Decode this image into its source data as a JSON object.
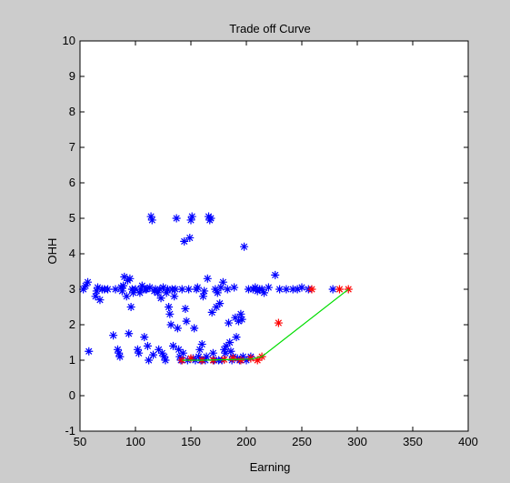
{
  "chart_data": {
    "type": "scatter",
    "title": "Trade off Curve",
    "xlabel": "Earning",
    "ylabel": "OHH",
    "xlim": [
      50,
      400
    ],
    "ylim": [
      -1,
      10
    ],
    "xticks": [
      50,
      100,
      150,
      200,
      250,
      300,
      350,
      400
    ],
    "yticks": [
      -1,
      0,
      1,
      2,
      3,
      4,
      5,
      6,
      7,
      8,
      9,
      10
    ],
    "grid": false,
    "legend": "none",
    "colors": {
      "background": "#cccccc",
      "axes_bg": "#ffffff",
      "blue": "#0000ff",
      "red": "#ff0000",
      "green": "#00dd00"
    },
    "series": [
      {
        "marker": "*",
        "color": "#0000ff",
        "points": [
          [
            53,
            3.0
          ],
          [
            55,
            3.1
          ],
          [
            57,
            3.2
          ],
          [
            58,
            1.25
          ],
          [
            64,
            2.8
          ],
          [
            65,
            2.95
          ],
          [
            66,
            3.05
          ],
          [
            68,
            2.7
          ],
          [
            70,
            3.0
          ],
          [
            72,
            3.0
          ],
          [
            75,
            3.0
          ],
          [
            80,
            1.7
          ],
          [
            82,
            3.0
          ],
          [
            84,
            1.3
          ],
          [
            85,
            1.2
          ],
          [
            86,
            1.1
          ],
          [
            87,
            3.05
          ],
          [
            88,
            2.95
          ],
          [
            89,
            3.1
          ],
          [
            90,
            3.35
          ],
          [
            92,
            2.8
          ],
          [
            93,
            3.25
          ],
          [
            94,
            1.75
          ],
          [
            95,
            3.3
          ],
          [
            96,
            2.5
          ],
          [
            97,
            3.0
          ],
          [
            98,
            2.9
          ],
          [
            100,
            3.0
          ],
          [
            102,
            1.3
          ],
          [
            103,
            1.2
          ],
          [
            104,
            2.9
          ],
          [
            105,
            3.0
          ],
          [
            106,
            3.1
          ],
          [
            108,
            1.65
          ],
          [
            109,
            3.0
          ],
          [
            110,
            3.0
          ],
          [
            111,
            1.4
          ],
          [
            112,
            1.0
          ],
          [
            113,
            3.05
          ],
          [
            114,
            5.05
          ],
          [
            115,
            4.95
          ],
          [
            116,
            1.15
          ],
          [
            117,
            2.95
          ],
          [
            118,
            3.0
          ],
          [
            120,
            2.9
          ],
          [
            121,
            1.3
          ],
          [
            122,
            3.0
          ],
          [
            123,
            2.75
          ],
          [
            124,
            1.2
          ],
          [
            125,
            3.05
          ],
          [
            126,
            1.1
          ],
          [
            127,
            1.0
          ],
          [
            128,
            2.9
          ],
          [
            129,
            3.0
          ],
          [
            130,
            2.5
          ],
          [
            131,
            2.3
          ],
          [
            132,
            2.0
          ],
          [
            133,
            3.0
          ],
          [
            134,
            1.4
          ],
          [
            135,
            2.8
          ],
          [
            136,
            3.0
          ],
          [
            137,
            5.0
          ],
          [
            138,
            1.9
          ],
          [
            139,
            1.3
          ],
          [
            140,
            1.1
          ],
          [
            141,
            1.0
          ],
          [
            142,
            3.0
          ],
          [
            143,
            1.2
          ],
          [
            144,
            4.35
          ],
          [
            145,
            2.45
          ],
          [
            146,
            2.1
          ],
          [
            147,
            1.0
          ],
          [
            148,
            3.0
          ],
          [
            149,
            4.45
          ],
          [
            150,
            4.95
          ],
          [
            151,
            5.05
          ],
          [
            152,
            1.05
          ],
          [
            153,
            1.9
          ],
          [
            154,
            1.0
          ],
          [
            155,
            3.0
          ],
          [
            156,
            3.05
          ],
          [
            157,
            1.1
          ],
          [
            158,
            1.3
          ],
          [
            159,
            1.0
          ],
          [
            160,
            1.45
          ],
          [
            161,
            2.8
          ],
          [
            162,
            2.95
          ],
          [
            163,
            1.0
          ],
          [
            164,
            1.1
          ],
          [
            165,
            3.3
          ],
          [
            166,
            5.05
          ],
          [
            167,
            4.95
          ],
          [
            168,
            5.0
          ],
          [
            169,
            2.35
          ],
          [
            170,
            1.2
          ],
          [
            171,
            1.0
          ],
          [
            172,
            3.0
          ],
          [
            173,
            2.5
          ],
          [
            174,
            2.9
          ],
          [
            175,
            1.0
          ],
          [
            176,
            2.6
          ],
          [
            177,
            3.05
          ],
          [
            178,
            1.0
          ],
          [
            179,
            3.2
          ],
          [
            180,
            1.3
          ],
          [
            181,
            1.2
          ],
          [
            182,
            1.4
          ],
          [
            183,
            3.0
          ],
          [
            184,
            2.05
          ],
          [
            185,
            1.5
          ],
          [
            186,
            1.25
          ],
          [
            187,
            1.0
          ],
          [
            188,
            1.1
          ],
          [
            189,
            3.05
          ],
          [
            190,
            2.2
          ],
          [
            191,
            1.65
          ],
          [
            192,
            1.05
          ],
          [
            193,
            2.1
          ],
          [
            194,
            1.0
          ],
          [
            195,
            2.3
          ],
          [
            196,
            2.15
          ],
          [
            197,
            1.1
          ],
          [
            198,
            4.2
          ],
          [
            200,
            1.0
          ],
          [
            202,
            3.0
          ],
          [
            204,
            1.1
          ],
          [
            206,
            3.0
          ],
          [
            208,
            3.05
          ],
          [
            210,
            2.95
          ],
          [
            212,
            3.0
          ],
          [
            214,
            3.0
          ],
          [
            216,
            2.9
          ],
          [
            220,
            3.05
          ],
          [
            226,
            3.4
          ],
          [
            230,
            3.0
          ],
          [
            236,
            3.0
          ],
          [
            242,
            3.0
          ],
          [
            246,
            3.0
          ],
          [
            250,
            3.05
          ],
          [
            256,
            3.0
          ],
          [
            278,
            3.0
          ]
        ]
      },
      {
        "marker": "*",
        "color": "#ff0000",
        "points": [
          [
            142,
            1.0
          ],
          [
            150,
            1.05
          ],
          [
            160,
            1.0
          ],
          [
            170,
            1.0
          ],
          [
            180,
            1.02
          ],
          [
            188,
            1.05
          ],
          [
            195,
            1.0
          ],
          [
            204,
            1.05
          ],
          [
            210,
            1.0
          ],
          [
            214,
            1.1
          ],
          [
            229,
            2.05
          ],
          [
            259,
            3.0
          ],
          [
            284,
            3.0
          ],
          [
            292,
            3.0
          ]
        ]
      },
      {
        "type": "line",
        "color": "#00dd00",
        "points": [
          [
            142,
            1.0
          ],
          [
            160,
            1.0
          ],
          [
            188,
            1.02
          ],
          [
            204,
            1.03
          ],
          [
            214,
            1.1
          ],
          [
            292,
            3.0
          ]
        ]
      }
    ]
  }
}
